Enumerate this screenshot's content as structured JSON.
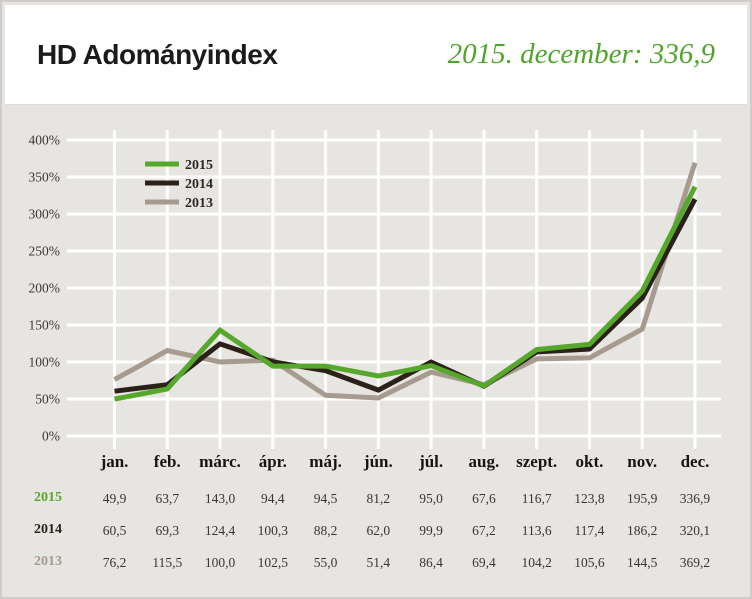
{
  "header": {
    "title": "HD Adományindex",
    "subtitle": "2015. december: 336,9"
  },
  "colors": {
    "page_bg": "#e7e5e2",
    "card_bg": "#ffffff",
    "grid": "#ffffff",
    "title_text": "#1b1b1b",
    "subtitle_green": "#4fa52c",
    "axis_text": "#3b3733",
    "legend_text": "#2e2823",
    "green_2015": "#56a82c",
    "dark_2014": "#2b2118",
    "taupe_2013": "#a79b8f"
  },
  "chart_data": {
    "type": "line",
    "title": "HD Adományindex",
    "categories": [
      "jan.",
      "feb.",
      "márc.",
      "ápr.",
      "máj.",
      "jún.",
      "júl.",
      "aug.",
      "szept.",
      "okt.",
      "nov.",
      "dec."
    ],
    "series": [
      {
        "name": "2015",
        "color": "#56a82c",
        "values": [
          49.9,
          63.7,
          143.0,
          94.4,
          94.5,
          81.2,
          95.0,
          67.6,
          116.7,
          123.8,
          195.9,
          336.9
        ]
      },
      {
        "name": "2014",
        "color": "#2b2118",
        "values": [
          60.5,
          69.3,
          124.4,
          100.3,
          88.2,
          62.0,
          99.9,
          67.2,
          113.6,
          117.4,
          186.2,
          320.1
        ]
      },
      {
        "name": "2013",
        "color": "#a79b8f",
        "values": [
          76.2,
          115.5,
          100.0,
          102.5,
          55.0,
          51.4,
          86.4,
          69.4,
          104.2,
          105.6,
          144.5,
          369.2
        ]
      }
    ],
    "y_ticks": [
      "0%",
      "50%",
      "100%",
      "150%",
      "200%",
      "250%",
      "300%",
      "350%",
      "400%"
    ],
    "ylim": [
      0,
      400
    ],
    "grid": true,
    "legend_position": "top-left",
    "legend_labels": [
      "2015",
      "2014",
      "2013"
    ]
  },
  "table": {
    "rows": [
      {
        "label": "2015",
        "cells": [
          "49,9",
          "63,7",
          "143,0",
          "94,4",
          "94,5",
          "81,2",
          "95,0",
          "67,6",
          "116,7",
          "123,8",
          "195,9",
          "336,9"
        ]
      },
      {
        "label": "2014",
        "cells": [
          "60,5",
          "69,3",
          "124,4",
          "100,3",
          "88,2",
          "62,0",
          "99,9",
          "67,2",
          "113,6",
          "117,4",
          "186,2",
          "320,1"
        ]
      },
      {
        "label": "2013",
        "cells": [
          "76,2",
          "115,5",
          "100,0",
          "102,5",
          "55,0",
          "51,4",
          "86,4",
          "69,4",
          "104,2",
          "105,6",
          "144,5",
          "369,2"
        ]
      }
    ]
  }
}
